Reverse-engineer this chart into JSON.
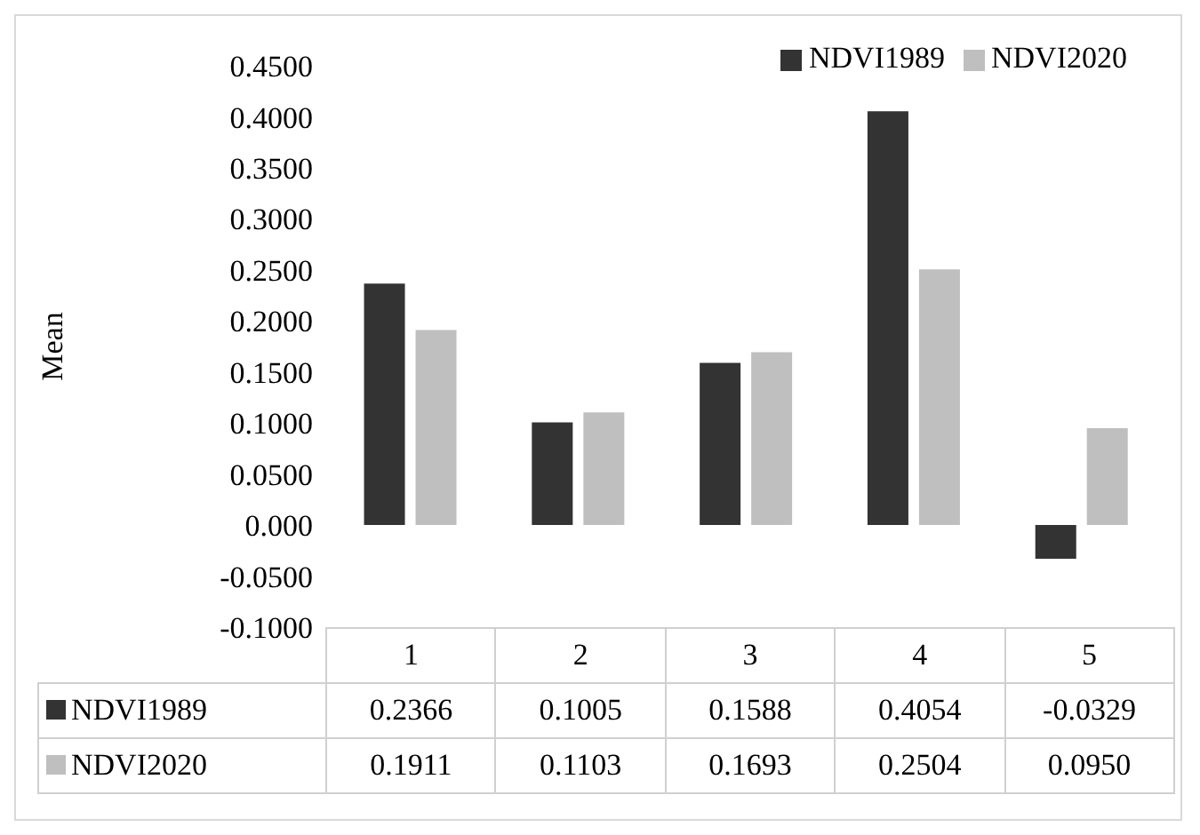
{
  "chart_data": {
    "type": "bar",
    "ylabel": "Mean",
    "categories": [
      "1",
      "2",
      "3",
      "4",
      "5"
    ],
    "series": [
      {
        "name": "NDVI1989",
        "color": "#333333",
        "values": [
          0.2366,
          0.1005,
          0.1588,
          0.4054,
          -0.0329
        ],
        "value_labels": [
          "0.2366",
          "0.1005",
          "0.1588",
          "0.4054",
          "-0.0329"
        ]
      },
      {
        "name": "NDVI2020",
        "color": "#bfbfbf",
        "values": [
          0.1911,
          0.1103,
          0.1693,
          0.2504,
          0.095
        ],
        "value_labels": [
          "0.1911",
          "0.1103",
          "0.1693",
          "0.2504",
          "0.0950"
        ]
      }
    ],
    "ylim": [
      -0.1,
      0.45
    ],
    "yticks": [
      {
        "value": -0.1,
        "label": "-0.1000"
      },
      {
        "value": -0.05,
        "label": "-0.0500"
      },
      {
        "value": 0,
        "label": "0.000"
      },
      {
        "value": 0.05,
        "label": "0.0500"
      },
      {
        "value": 0.1,
        "label": "0.1000"
      },
      {
        "value": 0.15,
        "label": "0.1500"
      },
      {
        "value": 0.2,
        "label": "0.2000"
      },
      {
        "value": 0.25,
        "label": "0.2500"
      },
      {
        "value": 0.3,
        "label": "0.3000"
      },
      {
        "value": 0.35,
        "label": "0.3500"
      },
      {
        "value": 0.4,
        "label": "0.4000"
      },
      {
        "value": 0.45,
        "label": "0.4500"
      }
    ],
    "legend": "top right",
    "grid": false
  }
}
